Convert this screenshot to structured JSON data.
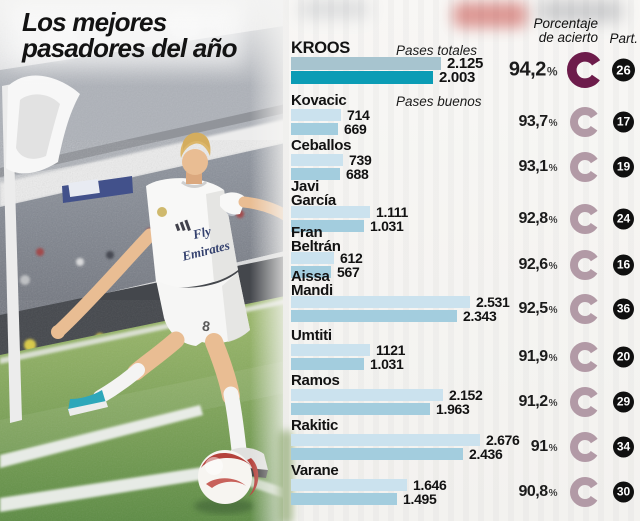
{
  "title": {
    "line1": "Los mejores",
    "line2": "pasadores del año"
  },
  "header": {
    "accuracy_line1": "Porcentaje",
    "accuracy_line2": "de acierto",
    "part": "Part."
  },
  "legend": {
    "total": "Pases totales",
    "good": "Pases buenos"
  },
  "photo": {
    "jersey_line1": "Fly",
    "jersey_line2": "Emirates",
    "shirt_number": "8"
  },
  "colors": {
    "text": "#141414",
    "bar_total": "#cbe2ee",
    "bar_good": "#a3cdde",
    "bar_total_hl": "#a7c4cf",
    "bar_good_hl": "#0b9cb5",
    "donut": "#b29aa6",
    "donut_hl": "#6d1c4b",
    "badge_bg": "#101010",
    "badge_text": "#ffffff"
  },
  "chart_data": {
    "type": "bar",
    "orientation": "horizontal",
    "title": "Los mejores pasadores del año",
    "series_labels": [
      "Pases totales",
      "Pases buenos"
    ],
    "pct_suffix": "%",
    "xmax": 2700,
    "columns": [
      "Pases totales",
      "Pases buenos",
      "Porcentaje de acierto",
      "Part."
    ],
    "players": [
      {
        "name": "KROOS",
        "name_lines": [
          "KROOS"
        ],
        "pases_totales": 2125,
        "pases_buenos": 2003,
        "totales_label": "2.125",
        "buenos_label": "2.003",
        "accuracy_pct": "94,2",
        "participations": "26",
        "highlight": true
      },
      {
        "name": "Kovacic",
        "name_lines": [
          "Kovacic"
        ],
        "pases_totales": 714,
        "pases_buenos": 669,
        "totales_label": "714",
        "buenos_label": "669",
        "accuracy_pct": "93,7",
        "participations": "17",
        "highlight": false
      },
      {
        "name": "Ceballos",
        "name_lines": [
          "Ceballos"
        ],
        "pases_totales": 739,
        "pases_buenos": 688,
        "totales_label": "739",
        "buenos_label": "688",
        "accuracy_pct": "93,1",
        "participations": "19",
        "highlight": false
      },
      {
        "name": "Javi García",
        "name_lines": [
          "Javi",
          "García"
        ],
        "pases_totales": 1111,
        "pases_buenos": 1031,
        "totales_label": "1.111",
        "buenos_label": "1.031",
        "accuracy_pct": "92,8",
        "participations": "24",
        "highlight": false
      },
      {
        "name": "Fran Beltrán",
        "name_lines": [
          "Fran",
          "Beltrán"
        ],
        "pases_totales": 612,
        "pases_buenos": 567,
        "totales_label": "612",
        "buenos_label": "567",
        "accuracy_pct": "92,6",
        "participations": "16",
        "highlight": false
      },
      {
        "name": "Aissa Mandi",
        "name_lines": [
          "Aissa",
          "Mandi"
        ],
        "pases_totales": 2531,
        "pases_buenos": 2343,
        "totales_label": "2.531",
        "buenos_label": "2.343",
        "accuracy_pct": "92,5",
        "participations": "36",
        "highlight": false
      },
      {
        "name": "Umtiti",
        "name_lines": [
          "Umtiti"
        ],
        "pases_totales": 1121,
        "pases_buenos": 1031,
        "totales_label": "1121",
        "buenos_label": "1.031",
        "accuracy_pct": "91,9",
        "participations": "20",
        "highlight": false
      },
      {
        "name": "Ramos",
        "name_lines": [
          "Ramos"
        ],
        "pases_totales": 2152,
        "pases_buenos": 1963,
        "totales_label": "2.152",
        "buenos_label": "1.963",
        "accuracy_pct": "91,2",
        "participations": "29",
        "highlight": false
      },
      {
        "name": "Rakitic",
        "name_lines": [
          "Rakitic"
        ],
        "pases_totales": 2676,
        "pases_buenos": 2436,
        "totales_label": "2.676",
        "buenos_label": "2.436",
        "accuracy_pct": "91",
        "participations": "34",
        "highlight": false
      },
      {
        "name": "Varane",
        "name_lines": [
          "Varane"
        ],
        "pases_totales": 1646,
        "pases_buenos": 1495,
        "totales_label": "1.646",
        "buenos_label": "1.495",
        "accuracy_pct": "90,8",
        "participations": "30",
        "highlight": false
      }
    ]
  }
}
